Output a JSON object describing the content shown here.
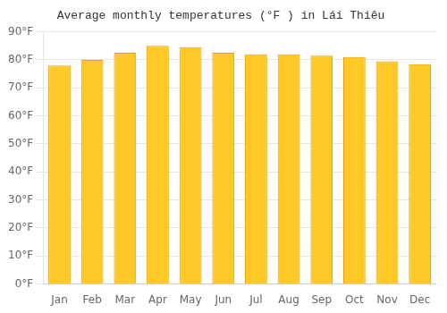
{
  "chart_data": {
    "type": "bar",
    "title": "Average monthly temperatures (°F ) in Lái Thiêu",
    "categories": [
      "Jan",
      "Feb",
      "Mar",
      "Apr",
      "May",
      "Jun",
      "Jul",
      "Aug",
      "Sep",
      "Oct",
      "Nov",
      "Dec"
    ],
    "values": [
      78,
      80,
      82.5,
      85,
      84.5,
      82.5,
      82,
      82,
      81.5,
      81,
      79.5,
      78.5
    ],
    "color": "#FFCA28",
    "ylim": [
      0,
      90
    ],
    "yticks": [
      {
        "value": 0,
        "label": "0°F"
      },
      {
        "value": 10,
        "label": "10°F"
      },
      {
        "value": 20,
        "label": "20°F"
      },
      {
        "value": 30,
        "label": "30°F"
      },
      {
        "value": 40,
        "label": "40°F"
      },
      {
        "value": 50,
        "label": "50°F"
      },
      {
        "value": 60,
        "label": "60°F"
      },
      {
        "value": 70,
        "label": "70°F"
      },
      {
        "value": 80,
        "label": "80°F"
      },
      {
        "value": 90,
        "label": "90°F"
      }
    ],
    "grid": true
  }
}
